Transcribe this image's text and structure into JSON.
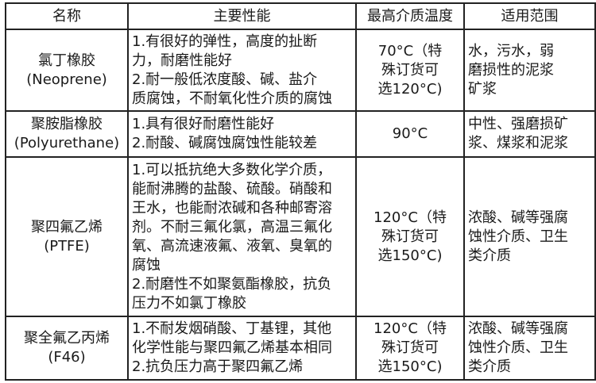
{
  "table": {
    "headers": [
      "名称",
      "主要性能",
      "最高介质温度",
      "适用范围"
    ],
    "rows": [
      {
        "name": "氯丁橡胶\n(Neoprene)",
        "performance": "1.有很好的弹性，高度的扯断\n力，耐磨性能好\n2.耐一般低浓度酸、碱、盐介\n质腐蚀，不耐氧化性介质的腐蚀",
        "max_temp": "70°C（特\n殊订货可\n选120°C)",
        "scope": "水，污水，弱\n磨损性的泥浆\n矿浆"
      },
      {
        "name": "聚胺脂橡胶\n(Polyurethane)",
        "performance": "1.具有很好耐磨性能好\n2.耐酸、碱腐蚀腐蚀性能较差",
        "max_temp": "90°C",
        "scope": "中性、强磨损矿\n浆、煤浆和泥浆"
      },
      {
        "name": "聚四氟乙烯\n(PTFE)",
        "performance": "1.可以抵抗绝大多数化学介质，\n能耐沸腾的盐酸、硫酸。硝酸和\n王水，也能耐浓碱和各种邮寄溶\n剂。不耐三氟化氯，高温三氟化\n氧、高流速液氟、液氧、臭氧的\n腐蚀\n2.耐磨性不如聚氨酯橡胶，抗负\n压力不如氯丁橡胶",
        "max_temp": "120°C（特\n殊订货可\n选150°C)",
        "scope": "浓酸、碱等强腐\n蚀性介质、卫生\n类介质"
      },
      {
        "name": "聚全氟乙丙烯\n(F46)",
        "performance": "1.不耐发烟硝酸、丁基锂，其他\n化学性能与聚四氟乙烯基本相同\n2.抗负压力高于聚四氟乙烯",
        "max_temp": "120°C（特\n殊订货可\n选150°C)",
        "scope": "浓酸、碱等强腐\n蚀性介质、卫生\n类介质"
      }
    ]
  }
}
